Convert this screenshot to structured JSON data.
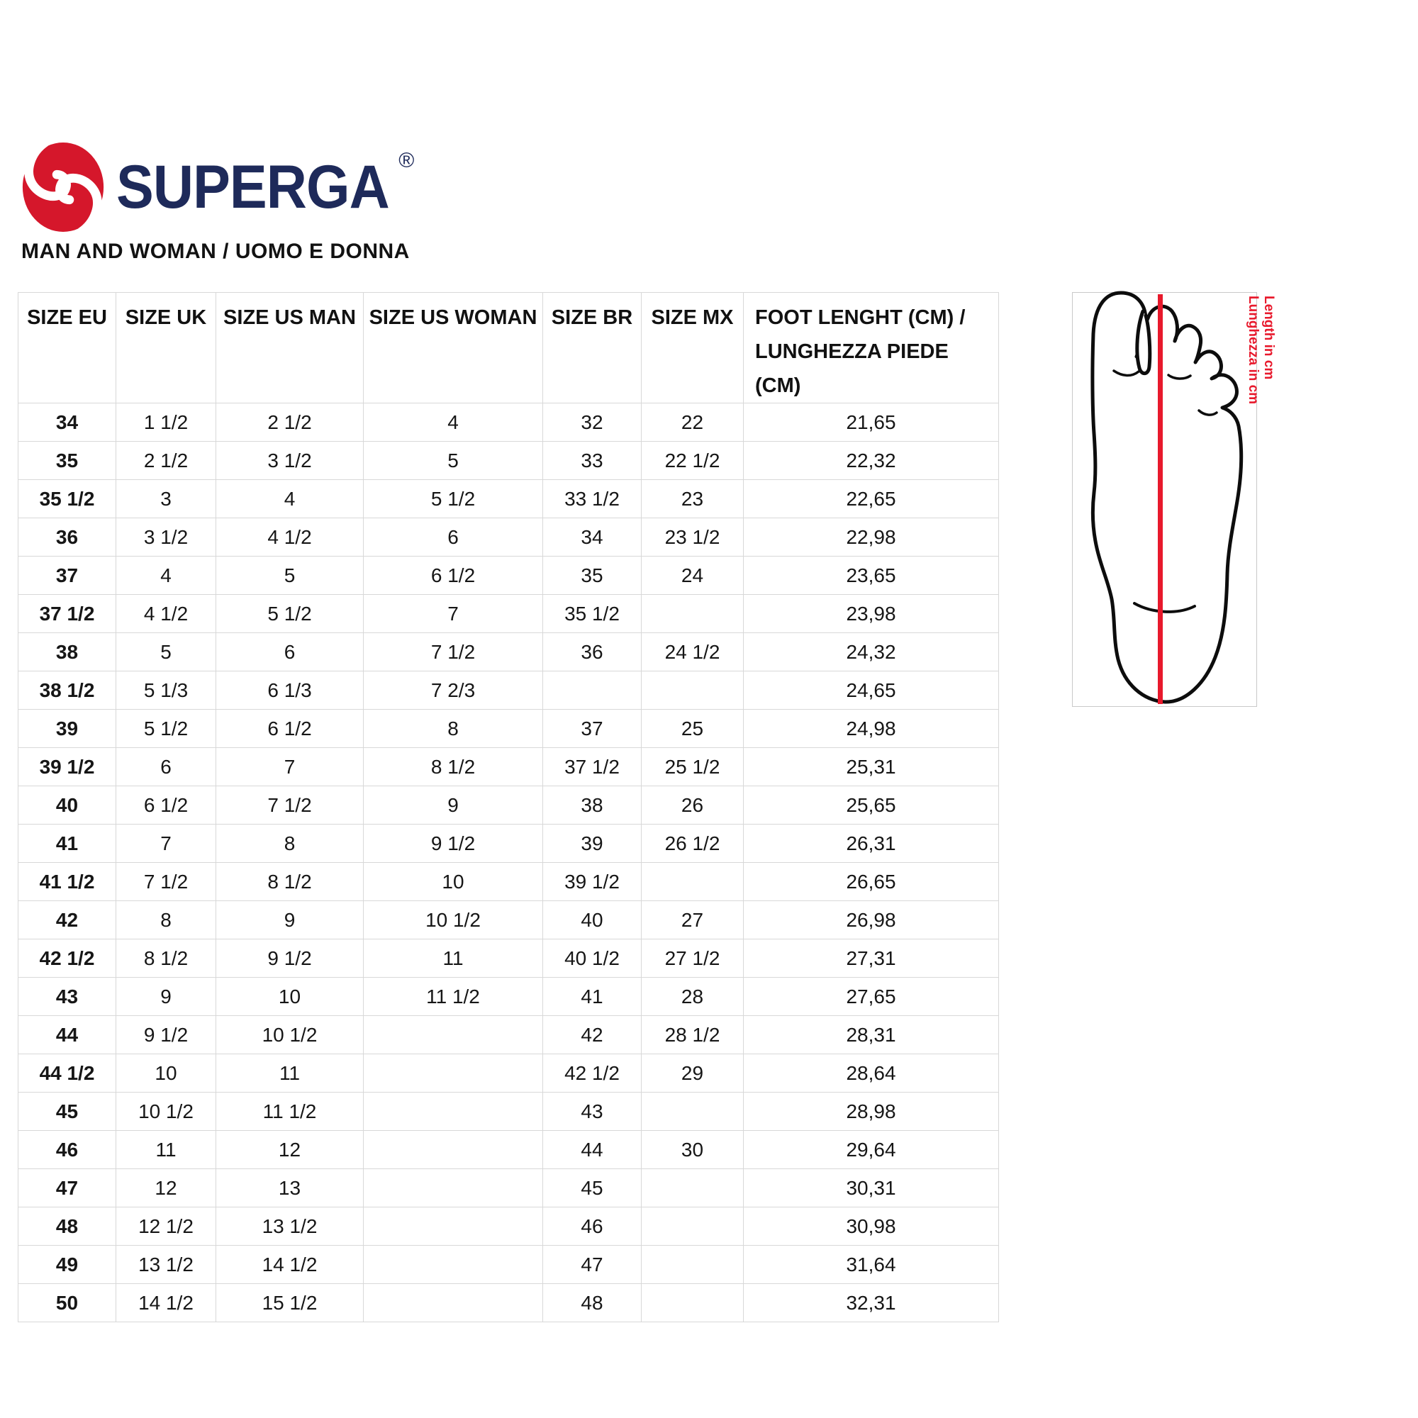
{
  "logo": {
    "brand": "SUPERGA",
    "registered": "®",
    "emblem_letter": "S"
  },
  "heading": "MAN AND WOMAN / UOMO E DONNA",
  "colors": {
    "brand_red": "#d5172b",
    "brand_navy": "#1e2a5a",
    "label_red": "#e8192c",
    "table_border": "#d8d8d8",
    "box_border": "#c9c9c9",
    "text": "#141414"
  },
  "size_table": {
    "columns": [
      "SIZE EU",
      "SIZE UK",
      "SIZE US MAN",
      "SIZE US WOMAN",
      "SIZE BR",
      "SIZE MX",
      "FOOT LENGHT (CM) / LUNGHEZZA PIEDE (CM)"
    ],
    "rows": [
      [
        "34",
        "1 1/2",
        "2 1/2",
        "4",
        "32",
        "22",
        "21,65"
      ],
      [
        "35",
        "2 1/2",
        "3 1/2",
        "5",
        "33",
        "22 1/2",
        "22,32"
      ],
      [
        "35 1/2",
        "3",
        "4",
        "5 1/2",
        "33 1/2",
        "23",
        "22,65"
      ],
      [
        "36",
        "3 1/2",
        "4 1/2",
        "6",
        "34",
        "23 1/2",
        "22,98"
      ],
      [
        "37",
        "4",
        "5",
        "6 1/2",
        "35",
        "24",
        "23,65"
      ],
      [
        "37 1/2",
        "4 1/2",
        "5 1/2",
        "7",
        "35 1/2",
        "",
        "23,98"
      ],
      [
        "38",
        "5",
        "6",
        "7 1/2",
        "36",
        "24 1/2",
        "24,32"
      ],
      [
        "38 1/2",
        "5 1/3",
        "6 1/3",
        "7 2/3",
        "",
        "",
        "24,65"
      ],
      [
        "39",
        "5 1/2",
        "6 1/2",
        "8",
        "37",
        "25",
        "24,98"
      ],
      [
        "39 1/2",
        "6",
        "7",
        "8 1/2",
        "37 1/2",
        "25 1/2",
        "25,31"
      ],
      [
        "40",
        "6 1/2",
        "7 1/2",
        "9",
        "38",
        "26",
        "25,65"
      ],
      [
        "41",
        "7",
        "8",
        "9 1/2",
        "39",
        "26 1/2",
        "26,31"
      ],
      [
        "41 1/2",
        "7 1/2",
        "8 1/2",
        "10",
        "39 1/2",
        "",
        "26,65"
      ],
      [
        "42",
        "8",
        "9",
        "10 1/2",
        "40",
        "27",
        "26,98"
      ],
      [
        "42 1/2",
        "8 1/2",
        "9 1/2",
        "11",
        "40 1/2",
        "27 1/2",
        "27,31"
      ],
      [
        "43",
        "9",
        "10",
        "11 1/2",
        "41",
        "28",
        "27,65"
      ],
      [
        "44",
        "9 1/2",
        "10 1/2",
        "",
        "42",
        "28 1/2",
        "28,31"
      ],
      [
        "44 1/2",
        "10",
        "11",
        "",
        "42 1/2",
        "29",
        "28,64"
      ],
      [
        "45",
        "10 1/2",
        "11 1/2",
        "",
        "43",
        "",
        "28,98"
      ],
      [
        "46",
        "11",
        "12",
        "",
        "44",
        "30",
        "29,64"
      ],
      [
        "47",
        "12",
        "13",
        "",
        "45",
        "",
        "30,31"
      ],
      [
        "48",
        "12 1/2",
        "13 1/2",
        "",
        "46",
        "",
        "30,98"
      ],
      [
        "49",
        "13 1/2",
        "14 1/2",
        "",
        "47",
        "",
        "31,64"
      ],
      [
        "50",
        "14 1/2",
        "15 1/2",
        "",
        "48",
        "",
        "32,31"
      ]
    ]
  },
  "foot_diagram": {
    "label_en": "Length in cm",
    "label_it": "Lunghezza in cm"
  }
}
